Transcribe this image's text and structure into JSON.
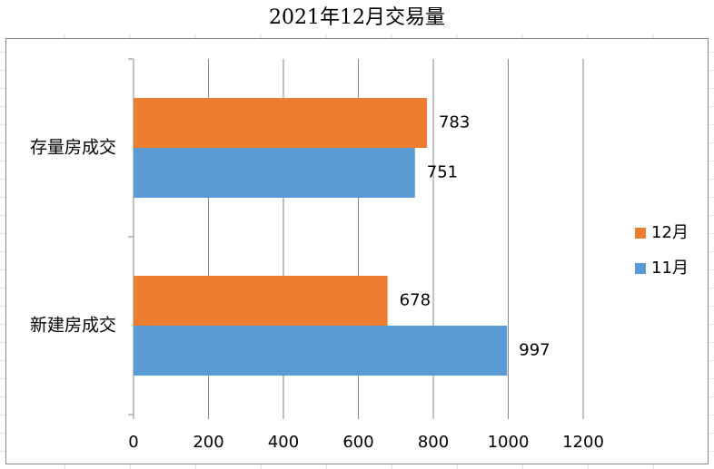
{
  "chart_data": {
    "type": "barh",
    "title": "2021年12月交易量",
    "categories": [
      "新建房成交",
      "存量房成交"
    ],
    "series": [
      {
        "name": "11月",
        "color": "#5b9bd5",
        "values": [
          997,
          751
        ]
      },
      {
        "name": "12月",
        "color": "#ed7d31",
        "values": [
          678,
          783
        ]
      }
    ],
    "xlim": [
      0,
      1200
    ],
    "xticks": [
      0,
      200,
      400,
      600,
      800,
      1000,
      1200
    ],
    "grid": true,
    "legend": "right"
  }
}
